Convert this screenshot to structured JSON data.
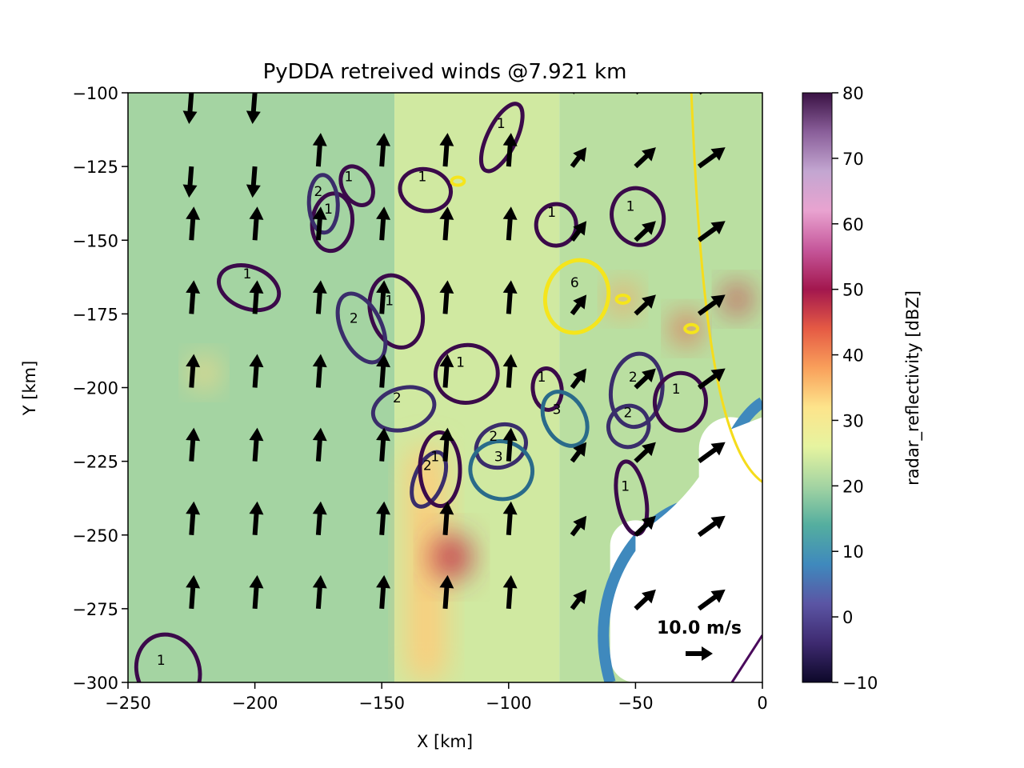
{
  "chart_data": {
    "type": "heatmap",
    "title": "PyDDA retreived winds @7.921 km",
    "xlabel": "X [km]",
    "ylabel": "Y [km]",
    "xlim": [
      -250,
      0
    ],
    "ylim": [
      -300,
      -100
    ],
    "x_ticks": [
      -250,
      -200,
      -150,
      -100,
      -50,
      0
    ],
    "y_ticks": [
      -100,
      -125,
      -150,
      -175,
      -200,
      -225,
      -250,
      -275,
      -300
    ],
    "x_tick_labels": [
      "−250",
      "−200",
      "−150",
      "−100",
      "−50",
      "0"
    ],
    "y_tick_labels": [
      "−100",
      "−125",
      "−150",
      "−175",
      "−200",
      "−225",
      "−250",
      "−275",
      "−300"
    ],
    "grid": false,
    "colorbar": {
      "label": "radar_reflectivity [dBZ]",
      "colormap": "spectral_r",
      "range": [
        -10,
        80
      ],
      "ticks": [
        80,
        70,
        60,
        50,
        40,
        30,
        20,
        10,
        0,
        -10
      ],
      "tick_labels": [
        "80",
        "70",
        "60",
        "50",
        "40",
        "30",
        "20",
        "10",
        "0",
        "−10"
      ],
      "colors": [
        "#0d0829",
        "#3e2a70",
        "#5b55a4",
        "#3f89bd",
        "#54ae9f",
        "#a4d4a2",
        "#e6f4a0",
        "#fde48b",
        "#f9a05b",
        "#e55a44",
        "#a3174e",
        "#c5569a",
        "#e9a3d0",
        "#c3a6d1",
        "#8a5f9a",
        "#3a1244"
      ]
    },
    "reflectivity_regions": [
      {
        "x": [
          -250,
          -145
        ],
        "y": [
          -300,
          -100
        ],
        "dbz": 20
      },
      {
        "x": [
          -145,
          -80
        ],
        "y": [
          -300,
          -100
        ],
        "dbz": 24
      },
      {
        "x": [
          -80,
          0
        ],
        "y": [
          -300,
          -100
        ],
        "dbz": 22
      },
      {
        "x": [
          -225,
          -215
        ],
        "y": [
          -200,
          -190
        ],
        "dbz": 33
      },
      {
        "x": [
          -140,
          -125
        ],
        "y": [
          -300,
          -220
        ],
        "dbz": 34
      },
      {
        "x": [
          -130,
          -115
        ],
        "y": [
          -265,
          -250
        ],
        "dbz": 47
      },
      {
        "x": [
          -35,
          -25
        ],
        "y": [
          -185,
          -175
        ],
        "dbz": 44
      },
      {
        "x": [
          -15,
          -5
        ],
        "y": [
          -175,
          -165
        ],
        "dbz": 47
      },
      {
        "x": [
          -60,
          -50
        ],
        "y": [
          -175,
          -165
        ],
        "dbz": 38
      },
      {
        "x": [
          -60,
          -40
        ],
        "y": [
          -300,
          -245
        ],
        "dbz": null
      },
      {
        "x": [
          -25,
          0
        ],
        "y": [
          -250,
          -210
        ],
        "dbz": null
      }
    ],
    "wind_vectors": {
      "units": "m/s",
      "columns_x": [
        -225,
        -200,
        -175,
        -150,
        -125,
        -100,
        -75,
        -50,
        -25
      ],
      "rows_y": [
        -275,
        -250,
        -225,
        -200,
        -175,
        -150,
        -125,
        -100
      ],
      "typical_u": 1.0,
      "typical_v": 14.0,
      "key": {
        "value": 10.0,
        "label": "10.0 m/s"
      }
    },
    "contour_levels": [
      1,
      2,
      3,
      4,
      5,
      6
    ],
    "contour_labels": [
      {
        "text": "1",
        "x": -163,
        "y": -130
      },
      {
        "text": "1",
        "x": -171,
        "y": -141
      },
      {
        "text": "1",
        "x": -147,
        "y": -172
      },
      {
        "text": "1",
        "x": -203,
        "y": -163
      },
      {
        "text": "2",
        "x": -175,
        "y": -135
      },
      {
        "text": "2",
        "x": -161,
        "y": -178
      },
      {
        "text": "1",
        "x": -134,
        "y": -130
      },
      {
        "text": "1",
        "x": -119,
        "y": -193
      },
      {
        "text": "1",
        "x": -103,
        "y": -112
      },
      {
        "text": "1",
        "x": -83,
        "y": -142
      },
      {
        "text": "1",
        "x": -52,
        "y": -140
      },
      {
        "text": "6",
        "x": -74,
        "y": -166
      },
      {
        "text": "1",
        "x": -87,
        "y": -198
      },
      {
        "text": "3",
        "x": -81,
        "y": -209
      },
      {
        "text": "2",
        "x": -51,
        "y": -198
      },
      {
        "text": "2",
        "x": -144,
        "y": -205
      },
      {
        "text": "2",
        "x": -132,
        "y": -228
      },
      {
        "text": "1",
        "x": -129,
        "y": -225
      },
      {
        "text": "2",
        "x": -106,
        "y": -218
      },
      {
        "text": "3",
        "x": -104,
        "y": -225
      },
      {
        "text": "1",
        "x": -54,
        "y": -235
      },
      {
        "text": "2",
        "x": -53,
        "y": -210
      },
      {
        "text": "1",
        "x": -34,
        "y": -202
      },
      {
        "text": "1",
        "x": -237,
        "y": -294
      }
    ]
  }
}
